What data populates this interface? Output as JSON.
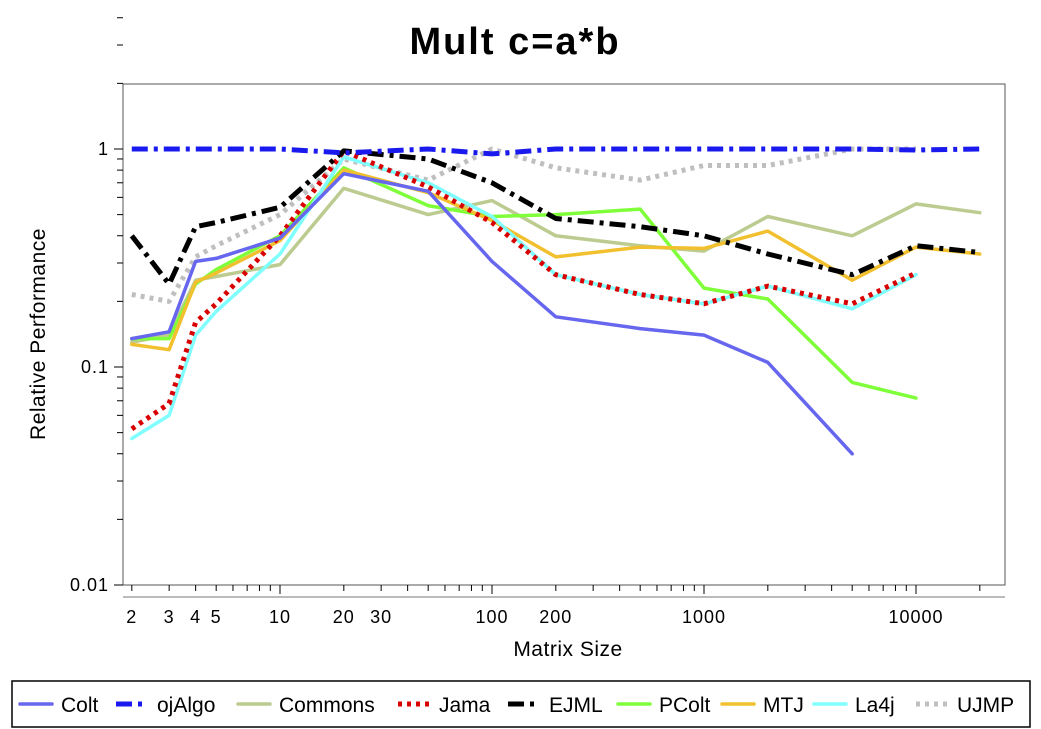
{
  "chart_data": {
    "type": "line",
    "title": "Mult c=a*b",
    "xlabel": "Matrix Size",
    "ylabel": "Relative Performance",
    "xscale": "log",
    "yscale": "log",
    "xlim": [
      1.7,
      32000
    ],
    "ylim": [
      0.01,
      2
    ],
    "x_ticks": [
      2,
      3,
      4,
      5,
      10,
      20,
      30,
      100,
      200,
      1000,
      10000
    ],
    "x_tick_labels": [
      "2",
      "3",
      "4",
      "5",
      "10",
      "20",
      "30",
      "100",
      "200",
      "1000",
      "10000"
    ],
    "y_ticks": [
      0.01,
      0.1,
      1
    ],
    "y_tick_labels": [
      "0.01",
      "0.1",
      "1"
    ],
    "grid": false,
    "legend_position": "bottom",
    "x": [
      2,
      3,
      4,
      5,
      10,
      20,
      50,
      100,
      200,
      500,
      1000,
      2000,
      5000,
      10000,
      20000
    ],
    "series": [
      {
        "name": "Colt",
        "color": "#6666ee",
        "style": "solid",
        "values": [
          0.135,
          0.145,
          0.305,
          0.315,
          0.39,
          0.77,
          0.64,
          0.305,
          0.17,
          0.15,
          0.14,
          0.105,
          0.04,
          null,
          null
        ]
      },
      {
        "name": "ojAlgo",
        "color": "#1a1aee",
        "style": "dashdot",
        "values": [
          1.0,
          1.0,
          1.0,
          1.0,
          1.0,
          0.96,
          1.0,
          0.95,
          1.0,
          1.0,
          1.0,
          1.0,
          1.0,
          0.99,
          1.0
        ]
      },
      {
        "name": "Commons",
        "color": "#bccb8f",
        "style": "solid",
        "values": [
          0.13,
          0.14,
          0.25,
          0.26,
          0.295,
          0.66,
          0.5,
          0.58,
          0.4,
          0.36,
          0.34,
          0.49,
          0.4,
          0.56,
          0.51
        ]
      },
      {
        "name": "Jama",
        "color": "#d90000",
        "style": "dotted",
        "values": [
          0.052,
          0.068,
          0.16,
          0.195,
          0.4,
          0.98,
          0.67,
          0.46,
          0.265,
          0.215,
          0.195,
          0.235,
          0.195,
          0.27,
          null
        ]
      },
      {
        "name": "EJML",
        "color": "#000000",
        "style": "dashdot",
        "values": [
          0.4,
          0.24,
          0.44,
          0.46,
          0.54,
          0.98,
          0.9,
          0.7,
          0.48,
          0.44,
          0.4,
          0.33,
          0.265,
          0.36,
          0.335
        ]
      },
      {
        "name": "PColt",
        "color": "#7fff3a",
        "style": "solid",
        "values": [
          0.135,
          0.135,
          0.24,
          0.28,
          0.4,
          0.82,
          0.55,
          0.49,
          0.5,
          0.53,
          0.23,
          0.205,
          0.085,
          0.072,
          null
        ]
      },
      {
        "name": "MTJ",
        "color": "#f2c02e",
        "style": "solid",
        "values": [
          0.127,
          0.12,
          0.245,
          0.27,
          0.38,
          0.8,
          0.63,
          0.47,
          0.32,
          0.355,
          0.35,
          0.42,
          0.25,
          0.355,
          0.33
        ]
      },
      {
        "name": "La4j",
        "color": "#80ffff",
        "style": "solid",
        "values": [
          0.047,
          0.06,
          0.14,
          0.18,
          0.33,
          0.92,
          0.7,
          0.49,
          0.265,
          0.215,
          0.195,
          0.235,
          0.185,
          0.265,
          null
        ]
      },
      {
        "name": "UJMP",
        "color": "#bfbfbf",
        "style": "dotted",
        "values": [
          0.215,
          0.2,
          0.32,
          0.36,
          0.5,
          0.9,
          0.72,
          1.0,
          0.82,
          0.72,
          0.84,
          0.84,
          1.0,
          1.0,
          null
        ]
      }
    ]
  }
}
